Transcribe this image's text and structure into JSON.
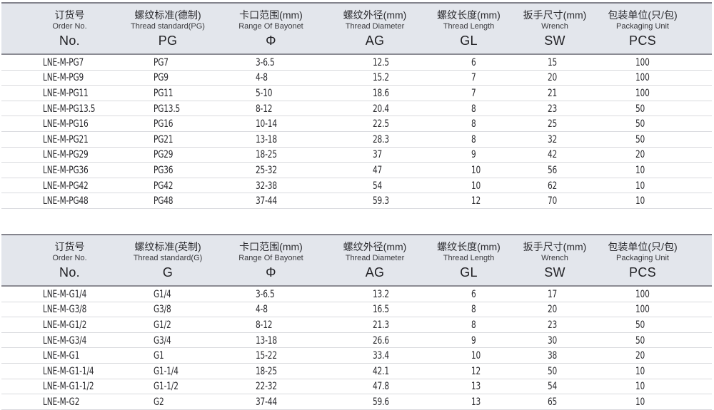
{
  "colors": {
    "header_bg": "#e3e6ec",
    "border_dark": "#8b8b93",
    "row_line": "#d9dade",
    "text": "#28282c"
  },
  "tables": [
    {
      "name": "pg-metric-thread-table",
      "columns": [
        {
          "zh": "订货号",
          "en": "Order No.",
          "code": "No."
        },
        {
          "zh": "螺纹标准(德制)",
          "en": "Thread standard(PG)",
          "code": "PG"
        },
        {
          "zh": "卡口范围(mm)",
          "en": "Range Of Bayonet",
          "code": "Φ"
        },
        {
          "zh": "螺纹外径(mm)",
          "en": "Thread Diameter",
          "code": "AG"
        },
        {
          "zh": "螺纹长度(mm)",
          "en": "Thread Length",
          "code": "GL"
        },
        {
          "zh": "扳手尺寸(mm)",
          "en": "Wrench",
          "code": "SW"
        },
        {
          "zh": "包装单位(只/包)",
          "en": "Packaging Unit",
          "code": "PCS"
        }
      ],
      "rows": [
        [
          "LNE-M-PG7",
          "PG7",
          "3-6.5",
          "12.5",
          "6",
          "15",
          "100"
        ],
        [
          "LNE-M-PG9",
          "PG9",
          "4-8",
          "15.2",
          "7",
          "20",
          "100"
        ],
        [
          "LNE-M-PG11",
          "PG11",
          "5-10",
          "18.6",
          "7",
          "21",
          "100"
        ],
        [
          "LNE-M-PG13.5",
          "PG13.5",
          "8-12",
          "20.4",
          "8",
          "23",
          "50"
        ],
        [
          "LNE-M-PG16",
          "PG16",
          "10-14",
          "22.5",
          "8",
          "25",
          "50"
        ],
        [
          "LNE-M-PG21",
          "PG21",
          "13-18",
          "28.3",
          "8",
          "32",
          "50"
        ],
        [
          "LNE-M-PG29",
          "PG29",
          "18-25",
          "37",
          "9",
          "42",
          "20"
        ],
        [
          "LNE-M-PG36",
          "PG36",
          "25-32",
          "47",
          "10",
          "56",
          "10"
        ],
        [
          "LNE-M-PG42",
          "PG42",
          "32-38",
          "54",
          "10",
          "62",
          "10"
        ],
        [
          "LNE-M-PG48",
          "PG48",
          "37-44",
          "59.3",
          "12",
          "70",
          "10"
        ]
      ]
    },
    {
      "name": "g-thread-table",
      "columns": [
        {
          "zh": "订货号",
          "en": "Order No.",
          "code": "No."
        },
        {
          "zh": "螺纹标准(英制)",
          "en": "Thread standard(G)",
          "code": "G"
        },
        {
          "zh": "卡口范围(mm)",
          "en": "Range Of Bayonet",
          "code": "Φ"
        },
        {
          "zh": "螺纹外径(mm)",
          "en": "Thread Diameter",
          "code": "AG"
        },
        {
          "zh": "螺纹长度(mm)",
          "en": "Thread Length",
          "code": "GL"
        },
        {
          "zh": "扳手尺寸(mm)",
          "en": "Wrench",
          "code": "SW"
        },
        {
          "zh": "包装单位(只/包)",
          "en": "Packaging Unit",
          "code": "PCS"
        }
      ],
      "rows": [
        [
          "LNE-M-G1/4",
          "G1/4",
          "3-6.5",
          "13.2",
          "6",
          "17",
          "100"
        ],
        [
          "LNE-M-G3/8",
          "G3/8",
          "4-8",
          "16.5",
          "8",
          "20",
          "100"
        ],
        [
          "LNE-M-G1/2",
          "G1/2",
          "8-12",
          "21.3",
          "8",
          "23",
          "50"
        ],
        [
          "LNE-M-G3/4",
          "G3/4",
          "13-18",
          "26.6",
          "9",
          "30",
          "50"
        ],
        [
          "LNE-M-G1",
          "G1",
          "15-22",
          "33.4",
          "10",
          "38",
          "20"
        ],
        [
          "LNE-M-G1-1/4",
          "G1-1/4",
          "18-25",
          "42.1",
          "12",
          "50",
          "10"
        ],
        [
          "LNE-M-G1-1/2",
          "G1-1/2",
          "22-32",
          "47.8",
          "13",
          "54",
          "10"
        ],
        [
          "LNE-M-G2",
          "G2",
          "37-44",
          "59.6",
          "13",
          "65",
          "10"
        ]
      ]
    }
  ]
}
